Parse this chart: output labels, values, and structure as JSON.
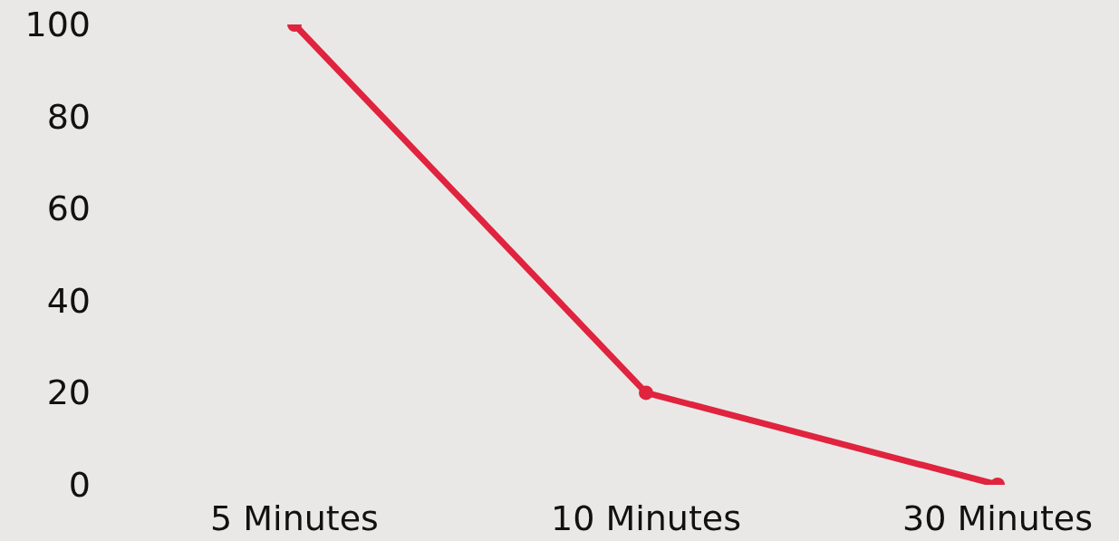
{
  "chart_data": {
    "type": "line",
    "categories": [
      "5 Minutes",
      "10 Minutes",
      "30 Minutes"
    ],
    "series": [
      {
        "color": "#e0233e",
        "values": [
          100,
          20,
          0
        ]
      }
    ],
    "ylim": [
      0,
      100
    ],
    "yticks": [
      0,
      20,
      40,
      60,
      80,
      100
    ],
    "marker": "circle",
    "line_style": "solid"
  }
}
